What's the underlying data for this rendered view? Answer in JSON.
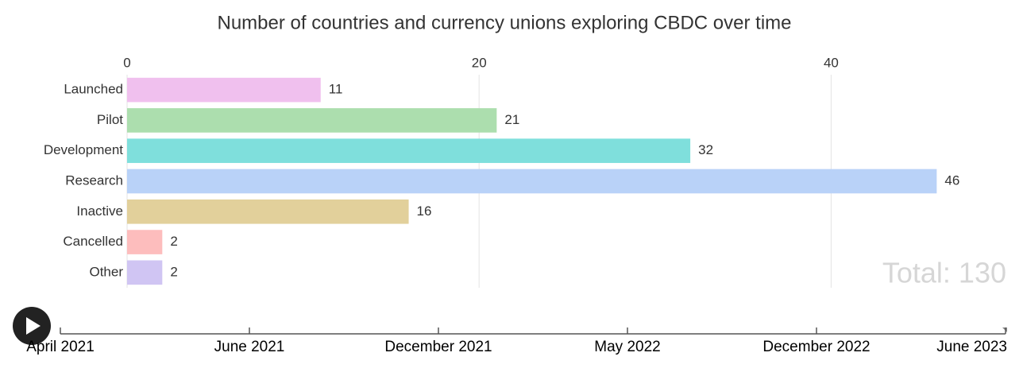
{
  "chart_data": {
    "type": "bar",
    "orientation": "horizontal",
    "title": "Number of countries and currency unions exploring CBDC over time",
    "categories": [
      "Launched",
      "Pilot",
      "Development",
      "Research",
      "Inactive",
      "Cancelled",
      "Other"
    ],
    "values": [
      11,
      21,
      32,
      46,
      16,
      2,
      2
    ],
    "colors": [
      "#f0c0ee",
      "#acdeae",
      "#7fdfdc",
      "#b9d2f8",
      "#e2d09b",
      "#fdbdbd",
      "#d0c5f3"
    ],
    "xlim": [
      0,
      50
    ],
    "xticks": [
      0,
      20,
      40
    ],
    "grid": true,
    "annotation": "Total: 130"
  },
  "timeline": {
    "labels": [
      "April 2021",
      "June 2021",
      "December 2021",
      "May 2022",
      "December 2022",
      "June 2023"
    ]
  }
}
